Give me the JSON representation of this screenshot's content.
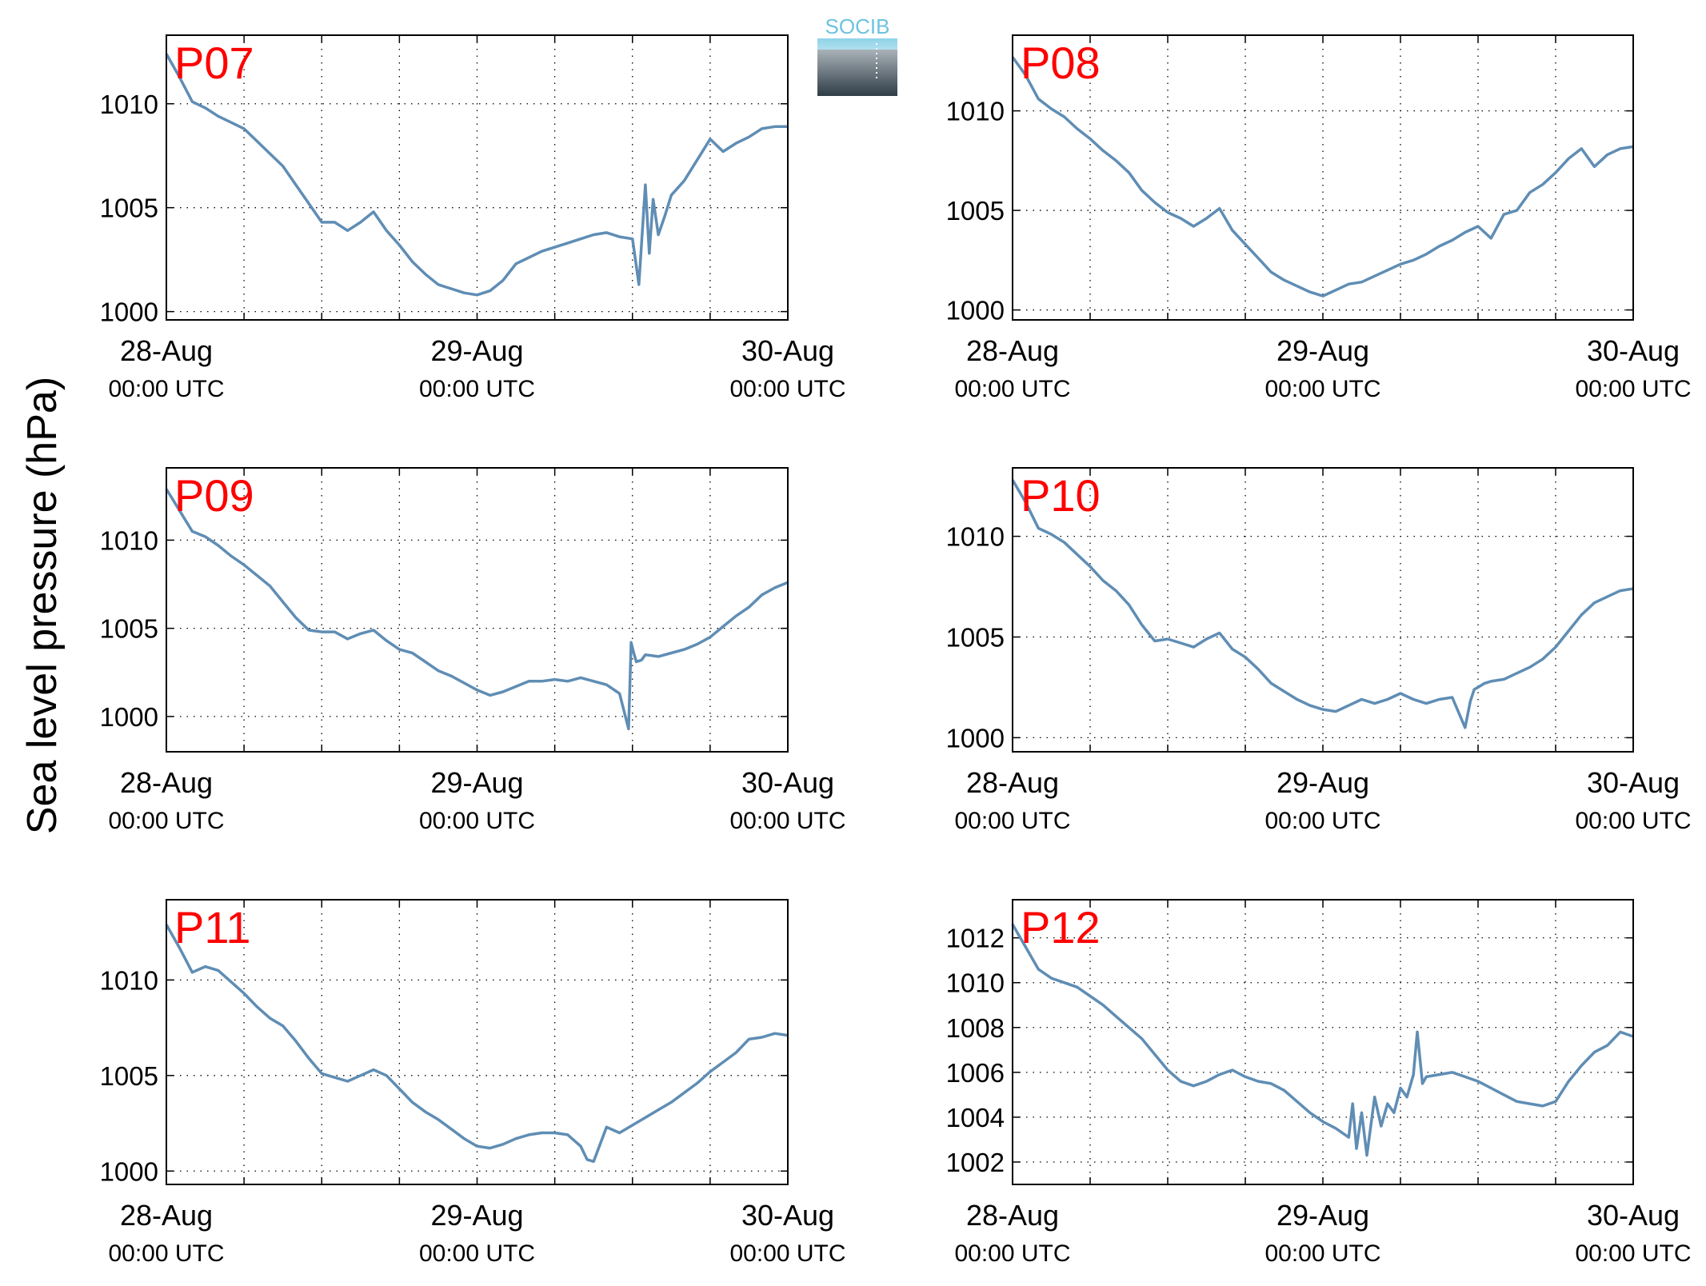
{
  "figure": {
    "ylabel": "Sea level pressure (hPa)",
    "logo_text": "SOCIB",
    "line_color": "#5f8db4",
    "label_color": "#ff0000"
  },
  "chart_data": [
    {
      "type": "line",
      "title": "P07",
      "x_ticks": [
        "28-Aug",
        "29-Aug",
        "30-Aug"
      ],
      "x_ticks_sub": "00:00 UTC",
      "xlim_hours": [
        0,
        48
      ],
      "ylim": [
        999.6,
        1013.3
      ],
      "yticks": [
        1000,
        1005,
        1010
      ],
      "grid": true,
      "series": [
        {
          "x": [
            0,
            1,
            2,
            3,
            4,
            5,
            6,
            7,
            8,
            9,
            10,
            11,
            12,
            13,
            14,
            15,
            16,
            17,
            18,
            19,
            20,
            21,
            22,
            23,
            24,
            25,
            26,
            27,
            28,
            29,
            30,
            31,
            32,
            33,
            34,
            35,
            36,
            36.5,
            37,
            37.3,
            37.6,
            38,
            38.5,
            39,
            40,
            41,
            42,
            43,
            44,
            45,
            46,
            47,
            48
          ],
          "y": [
            1012.4,
            1011.3,
            1010.1,
            1009.8,
            1009.4,
            1009.1,
            1008.8,
            1008.2,
            1007.6,
            1007.0,
            1006.1,
            1005.2,
            1004.3,
            1004.3,
            1003.9,
            1004.3,
            1004.8,
            1003.9,
            1003.2,
            1002.4,
            1001.8,
            1001.3,
            1001.1,
            1000.9,
            1000.8,
            1001.0,
            1001.5,
            1002.3,
            1002.6,
            1002.9,
            1003.1,
            1003.3,
            1003.5,
            1003.7,
            1003.8,
            1003.6,
            1003.5,
            1001.3,
            1006.1,
            1002.8,
            1005.4,
            1003.7,
            1004.6,
            1005.6,
            1006.3,
            1007.3,
            1008.3,
            1007.7,
            1008.1,
            1008.4,
            1008.8,
            1008.9,
            1008.9
          ]
        }
      ]
    },
    {
      "type": "line",
      "title": "P08",
      "x_ticks": [
        "28-Aug",
        "29-Aug",
        "30-Aug"
      ],
      "x_ticks_sub": "00:00 UTC",
      "xlim_hours": [
        0,
        48
      ],
      "ylim": [
        999.5,
        1013.8
      ],
      "yticks": [
        1000,
        1005,
        1010
      ],
      "grid": true,
      "series": [
        {
          "x": [
            0,
            1,
            2,
            3,
            4,
            5,
            6,
            7,
            8,
            9,
            10,
            11,
            12,
            13,
            14,
            15,
            16,
            17,
            18,
            19,
            20,
            21,
            22,
            23,
            24,
            25,
            26,
            27,
            28,
            29,
            30,
            31,
            32,
            33,
            34,
            35,
            36,
            37,
            38,
            39,
            40,
            41,
            42,
            43,
            44,
            45,
            46,
            47,
            48
          ],
          "y": [
            1012.7,
            1011.8,
            1010.6,
            1010.1,
            1009.7,
            1009.1,
            1008.6,
            1008.0,
            1007.5,
            1006.9,
            1006.0,
            1005.4,
            1004.9,
            1004.6,
            1004.2,
            1004.6,
            1005.1,
            1004.0,
            1003.3,
            1002.6,
            1001.9,
            1001.5,
            1001.2,
            1000.9,
            1000.7,
            1001.0,
            1001.3,
            1001.4,
            1001.7,
            1002.0,
            1002.3,
            1002.5,
            1002.8,
            1003.2,
            1003.5,
            1003.9,
            1004.2,
            1003.6,
            1004.8,
            1005.0,
            1005.9,
            1006.3,
            1006.9,
            1007.6,
            1008.1,
            1007.2,
            1007.8,
            1008.1,
            1008.2
          ]
        }
      ]
    },
    {
      "type": "line",
      "title": "P09",
      "x_ticks": [
        "28-Aug",
        "29-Aug",
        "30-Aug"
      ],
      "x_ticks_sub": "00:00 UTC",
      "xlim_hours": [
        0,
        48
      ],
      "ylim": [
        998.0,
        1014.1
      ],
      "yticks": [
        1000,
        1005,
        1010
      ],
      "grid": true,
      "series": [
        {
          "x": [
            0,
            1,
            2,
            3,
            4,
            5,
            6,
            7,
            8,
            9,
            10,
            11,
            12,
            13,
            14,
            15,
            16,
            17,
            18,
            19,
            20,
            21,
            22,
            23,
            24,
            25,
            26,
            27,
            28,
            29,
            30,
            31,
            32,
            33,
            34,
            35,
            35.7,
            35.9,
            36.1,
            36.3,
            36.7,
            37,
            38,
            39,
            40,
            41,
            42,
            43,
            44,
            45,
            46,
            47,
            48
          ],
          "y": [
            1012.9,
            1011.7,
            1010.5,
            1010.2,
            1009.7,
            1009.1,
            1008.6,
            1008.0,
            1007.4,
            1006.5,
            1005.6,
            1004.9,
            1004.8,
            1004.8,
            1004.4,
            1004.7,
            1004.9,
            1004.3,
            1003.8,
            1003.6,
            1003.1,
            1002.6,
            1002.3,
            1001.9,
            1001.5,
            1001.2,
            1001.4,
            1001.7,
            1002.0,
            1002.0,
            1002.1,
            1002.0,
            1002.2,
            1002.0,
            1001.8,
            1001.3,
            999.3,
            1004.2,
            1003.6,
            1003.1,
            1003.2,
            1003.5,
            1003.4,
            1003.6,
            1003.8,
            1004.1,
            1004.5,
            1005.1,
            1005.7,
            1006.2,
            1006.9,
            1007.3,
            1007.6
          ]
        }
      ]
    },
    {
      "type": "line",
      "title": "P10",
      "x_ticks": [
        "28-Aug",
        "29-Aug",
        "30-Aug"
      ],
      "x_ticks_sub": "00:00 UTC",
      "xlim_hours": [
        0,
        48
      ],
      "ylim": [
        999.3,
        1013.4
      ],
      "yticks": [
        1000,
        1005,
        1010
      ],
      "grid": true,
      "series": [
        {
          "x": [
            0,
            1,
            2,
            3,
            4,
            5,
            6,
            7,
            8,
            9,
            10,
            11,
            12,
            13,
            14,
            15,
            16,
            17,
            18,
            19,
            20,
            21,
            22,
            23,
            24,
            25,
            26,
            27,
            28,
            29,
            30,
            31,
            32,
            33,
            34,
            35,
            35.4,
            35.7,
            36,
            36.5,
            37,
            38,
            39,
            40,
            41,
            42,
            43,
            44,
            45,
            46,
            47,
            48
          ],
          "y": [
            1012.8,
            1011.7,
            1010.4,
            1010.1,
            1009.7,
            1009.1,
            1008.5,
            1007.8,
            1007.3,
            1006.6,
            1005.6,
            1004.8,
            1004.9,
            1004.7,
            1004.5,
            1004.9,
            1005.2,
            1004.4,
            1004.0,
            1003.4,
            1002.7,
            1002.3,
            1001.9,
            1001.6,
            1001.4,
            1001.3,
            1001.6,
            1001.9,
            1001.7,
            1001.9,
            1002.2,
            1001.9,
            1001.7,
            1001.9,
            1002.0,
            1000.5,
            1001.8,
            1002.4,
            1002.5,
            1002.7,
            1002.8,
            1002.9,
            1003.2,
            1003.5,
            1003.9,
            1004.5,
            1005.3,
            1006.1,
            1006.7,
            1007.0,
            1007.3,
            1007.4
          ]
        }
      ]
    },
    {
      "type": "line",
      "title": "P11",
      "x_ticks": [
        "28-Aug",
        "29-Aug",
        "30-Aug"
      ],
      "x_ticks_sub": "00:00 UTC",
      "xlim_hours": [
        0,
        48
      ],
      "ylim": [
        999.3,
        1014.2
      ],
      "yticks": [
        1000,
        1005,
        1010
      ],
      "grid": true,
      "series": [
        {
          "x": [
            0,
            1,
            2,
            3,
            4,
            5,
            6,
            7,
            8,
            9,
            10,
            11,
            12,
            13,
            14,
            15,
            16,
            17,
            18,
            19,
            20,
            21,
            22,
            23,
            24,
            25,
            26,
            27,
            28,
            29,
            30,
            31,
            32,
            32.5,
            33,
            34,
            35,
            36,
            37,
            38,
            39,
            40,
            41,
            42,
            43,
            44,
            45,
            46,
            47,
            48
          ],
          "y": [
            1012.9,
            1011.7,
            1010.4,
            1010.7,
            1010.5,
            1009.9,
            1009.3,
            1008.6,
            1008.0,
            1007.6,
            1006.8,
            1005.9,
            1005.1,
            1004.9,
            1004.7,
            1005.0,
            1005.3,
            1005.0,
            1004.3,
            1003.6,
            1003.1,
            1002.7,
            1002.2,
            1001.7,
            1001.3,
            1001.2,
            1001.4,
            1001.7,
            1001.9,
            1002.0,
            1002.0,
            1001.9,
            1001.3,
            1000.6,
            1000.5,
            1002.3,
            1002.0,
            1002.4,
            1002.8,
            1003.2,
            1003.6,
            1004.1,
            1004.6,
            1005.2,
            1005.7,
            1006.2,
            1006.9,
            1007.0,
            1007.2,
            1007.1
          ]
        }
      ]
    },
    {
      "type": "line",
      "title": "P12",
      "x_ticks": [
        "28-Aug",
        "29-Aug",
        "30-Aug"
      ],
      "x_ticks_sub": "00:00 UTC",
      "xlim_hours": [
        0,
        48
      ],
      "ylim": [
        1001.0,
        1013.7
      ],
      "yticks": [
        1002,
        1004,
        1006,
        1008,
        1010,
        1012
      ],
      "grid": true,
      "series": [
        {
          "x": [
            0,
            1,
            2,
            3,
            4,
            5,
            6,
            7,
            8,
            9,
            10,
            11,
            12,
            13,
            14,
            15,
            16,
            17,
            18,
            19,
            20,
            21,
            22,
            23,
            24,
            25,
            26,
            26.3,
            26.6,
            27,
            27.4,
            28,
            28.5,
            29,
            29.5,
            30,
            30.5,
            31,
            31.3,
            31.7,
            32,
            33,
            34,
            35,
            36,
            37,
            38,
            39,
            40,
            41,
            42,
            43,
            44,
            45,
            46,
            47,
            48
          ],
          "y": [
            1012.6,
            1011.6,
            1010.6,
            1010.2,
            1010.0,
            1009.8,
            1009.4,
            1009.0,
            1008.5,
            1008.0,
            1007.5,
            1006.8,
            1006.1,
            1005.6,
            1005.4,
            1005.6,
            1005.9,
            1006.1,
            1005.8,
            1005.6,
            1005.5,
            1005.2,
            1004.7,
            1004.2,
            1003.8,
            1003.5,
            1003.1,
            1004.6,
            1002.6,
            1004.2,
            1002.3,
            1004.9,
            1003.6,
            1004.6,
            1004.2,
            1005.3,
            1004.9,
            1005.9,
            1007.8,
            1005.5,
            1005.8,
            1005.9,
            1006.0,
            1005.8,
            1005.6,
            1005.3,
            1005.0,
            1004.7,
            1004.6,
            1004.5,
            1004.7,
            1005.6,
            1006.3,
            1006.9,
            1007.2,
            1007.8,
            1007.6
          ]
        }
      ]
    }
  ]
}
